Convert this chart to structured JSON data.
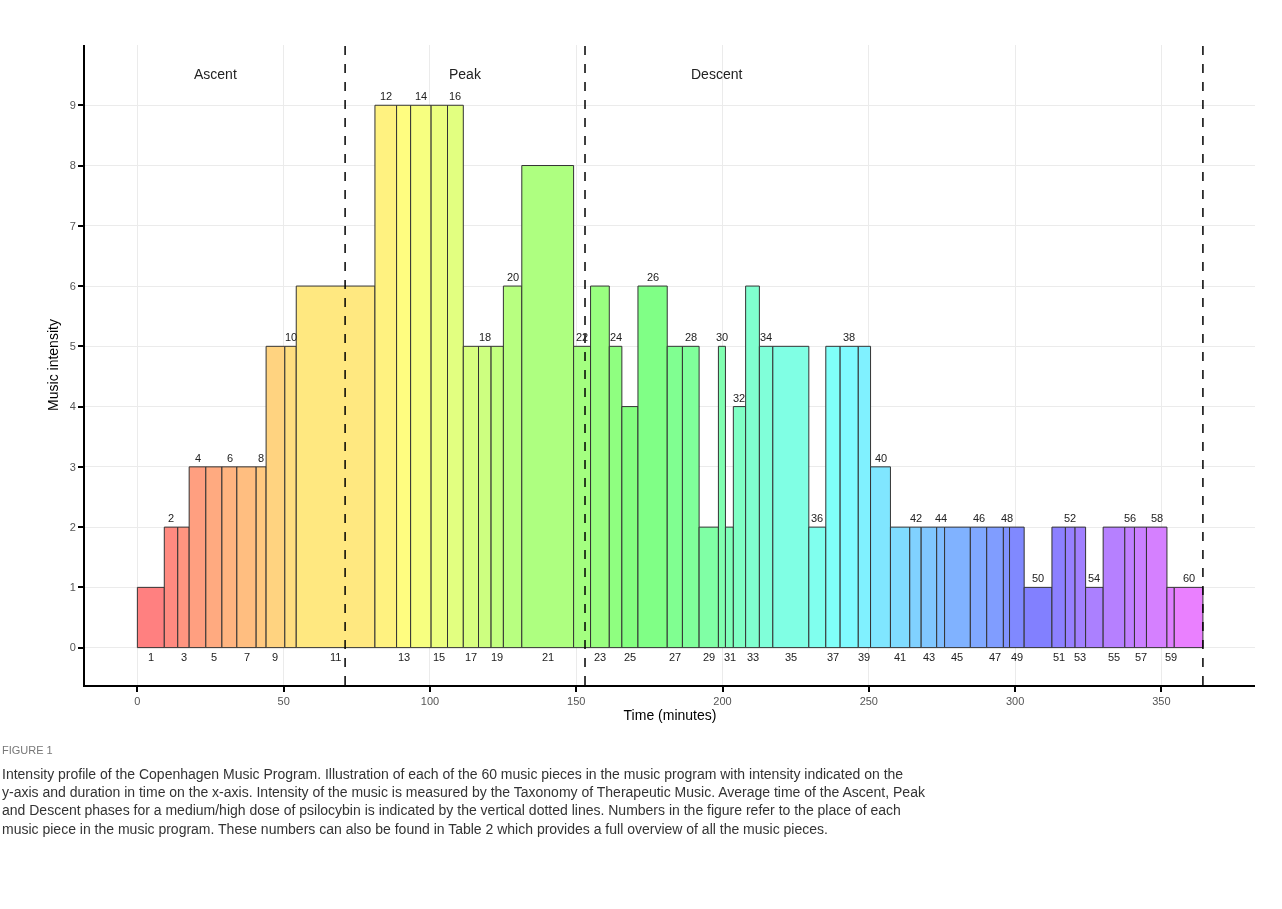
{
  "chart_data": {
    "type": "histogram",
    "xlabel": "Time (minutes)",
    "ylabel": "Music intensity",
    "bins": [
      0,
      9.2,
      13.8,
      17.7,
      23.4,
      28.9,
      34.0,
      40.6,
      44.0,
      50.4,
      54.3,
      81.2,
      88.6,
      93.4,
      100.4,
      106.0,
      111.4,
      116.6,
      120.9,
      125.1,
      131.4,
      149.1,
      154.9,
      161.3,
      165.6,
      171.1,
      181.1,
      186.3,
      192.0,
      198.6,
      201.0,
      203.7,
      207.9,
      212.6,
      217.2,
      229.5,
      235.3,
      240.2,
      246.4,
      250.6,
      257.4,
      264.0,
      267.9,
      273.2,
      275.9,
      284.7,
      290.3,
      296.0,
      298.1,
      303.1,
      312.6,
      317.2,
      320.5,
      324.1,
      330.1,
      337.5,
      340.8,
      344.9,
      351.9,
      354.4,
      364.2
    ],
    "values": [
      1,
      2,
      2,
      3,
      3,
      3,
      3,
      3,
      5,
      5,
      6,
      9,
      9,
      9,
      9,
      9,
      5,
      5,
      5,
      6,
      8,
      5,
      6,
      5,
      4,
      6,
      5,
      5,
      2,
      5,
      2,
      4,
      6,
      5,
      5,
      2,
      5,
      5,
      5,
      3,
      2,
      2,
      2,
      2,
      2,
      2,
      2,
      2,
      2,
      1,
      2,
      2,
      2,
      1,
      2,
      2,
      2,
      2,
      1,
      1
    ],
    "colors": [
      "#ff8080",
      "#ff8a80",
      "#ff9580",
      "#ff9f80",
      "#ffaa80",
      "#ffb480",
      "#ffbe80",
      "#ffc980",
      "#ffd380",
      "#ffde80",
      "#ffe880",
      "#fff280",
      "#fffd80",
      "#f7ff80",
      "#ecff80",
      "#e2ff80",
      "#d8ff80",
      "#cdff80",
      "#c3ff80",
      "#b8ff80",
      "#aeff80",
      "#a4ff80",
      "#99ff80",
      "#8fff80",
      "#84ff80",
      "#80ff86",
      "#80ff91",
      "#80ff9b",
      "#80ffa5",
      "#80ffb0",
      "#80ffba",
      "#80ffc5",
      "#80ffcf",
      "#80ffd9",
      "#80ffe4",
      "#80ffee",
      "#80fff9",
      "#80fbff",
      "#80f1ff",
      "#80e6ff",
      "#80dcff",
      "#80d1ff",
      "#80c7ff",
      "#80bcff",
      "#80b2ff",
      "#80a8ff",
      "#809dff",
      "#8093ff",
      "#8089ff",
      "#8280ff",
      "#8c80ff",
      "#9780ff",
      "#a180ff",
      "#ab80ff",
      "#b680ff",
      "#c080ff",
      "#cb80ff",
      "#d580ff",
      "#df80ff",
      "#ea80ff"
    ],
    "xlim": [
      -17.9,
      382
    ],
    "xticks": [
      0,
      50,
      100,
      150,
      200,
      250,
      300,
      350
    ],
    "ylim": [
      -0.62,
      10.0
    ],
    "yticks": [
      0,
      1,
      2,
      3,
      4,
      5,
      6,
      7,
      8,
      9
    ],
    "grid": true,
    "ref_lines": [
      {
        "axis": "x",
        "value": 71.0,
        "color": "#000000",
        "line_style": "dashed"
      },
      {
        "axis": "x",
        "value": 153.0,
        "color": "#000000",
        "line_style": "dashed"
      },
      {
        "axis": "x",
        "value": 364.2,
        "color": "#000000",
        "line_style": "dashed"
      }
    ],
    "annotations": [
      "Ascent",
      "Peak",
      "Descent",
      {
        "text": "1",
        "x": 4.6,
        "y": 0
      },
      {
        "text": "2",
        "x": 11.5,
        "y": 2
      },
      {
        "text": "3",
        "x": 15.8,
        "y": 0
      },
      {
        "text": "4",
        "x": 20.6,
        "y": 3
      },
      {
        "text": "5",
        "x": 26.2,
        "y": 0
      },
      {
        "text": "6",
        "x": 31.5,
        "y": 3
      },
      {
        "text": "7",
        "x": 37.3,
        "y": 0
      },
      {
        "text": "8",
        "x": 42.3,
        "y": 3
      },
      {
        "text": "9",
        "x": 47.2,
        "y": 0
      },
      {
        "text": "10",
        "x": 52.4,
        "y": 5
      },
      {
        "text": "11",
        "x": 67.8,
        "y": 0
      },
      {
        "text": "12",
        "x": 84.9,
        "y": 9
      },
      {
        "text": "13",
        "x": 91.0,
        "y": 0
      },
      {
        "text": "14",
        "x": 96.9,
        "y": 9
      },
      {
        "text": "15",
        "x": 103.2,
        "y": 0
      },
      {
        "text": "16",
        "x": 108.7,
        "y": 9
      },
      {
        "text": "17",
        "x": 114.0,
        "y": 0
      },
      {
        "text": "18",
        "x": 118.8,
        "y": 5
      },
      {
        "text": "19",
        "x": 123.0,
        "y": 0
      },
      {
        "text": "20",
        "x": 128.3,
        "y": 6
      },
      {
        "text": "21",
        "x": 140.3,
        "y": 0
      },
      {
        "text": "22",
        "x": 152.0,
        "y": 5
      },
      {
        "text": "23",
        "x": 158.1,
        "y": 0
      },
      {
        "text": "24",
        "x": 163.5,
        "y": 5
      },
      {
        "text": "25",
        "x": 168.4,
        "y": 0
      },
      {
        "text": "26",
        "x": 176.1,
        "y": 6
      },
      {
        "text": "27",
        "x": 183.7,
        "y": 0
      },
      {
        "text": "28",
        "x": 189.2,
        "y": 5
      },
      {
        "text": "29",
        "x": 195.3,
        "y": 0
      },
      {
        "text": "30",
        "x": 199.8,
        "y": 5
      },
      {
        "text": "31",
        "x": 202.4,
        "y": 0
      },
      {
        "text": "32",
        "x": 205.8,
        "y": 4
      },
      {
        "text": "33",
        "x": 210.3,
        "y": 0
      },
      {
        "text": "34",
        "x": 214.9,
        "y": 5
      },
      {
        "text": "35",
        "x": 223.4,
        "y": 0
      },
      {
        "text": "36",
        "x": 232.4,
        "y": 2
      },
      {
        "text": "37",
        "x": 237.8,
        "y": 0
      },
      {
        "text": "38",
        "x": 243.3,
        "y": 5
      },
      {
        "text": "39",
        "x": 248.5,
        "y": 0
      },
      {
        "text": "40",
        "x": 254.0,
        "y": 3
      },
      {
        "text": "41",
        "x": 260.7,
        "y": 0
      },
      {
        "text": "42",
        "x": 266.0,
        "y": 2
      },
      {
        "text": "43",
        "x": 270.6,
        "y": 0
      },
      {
        "text": "44",
        "x": 274.6,
        "y": 2
      },
      {
        "text": "45",
        "x": 280.3,
        "y": 0
      },
      {
        "text": "46",
        "x": 287.5,
        "y": 2
      },
      {
        "text": "47",
        "x": 293.2,
        "y": 0
      },
      {
        "text": "48",
        "x": 297.1,
        "y": 2
      },
      {
        "text": "49",
        "x": 300.6,
        "y": 0
      },
      {
        "text": "50",
        "x": 307.9,
        "y": 1
      },
      {
        "text": "51",
        "x": 314.9,
        "y": 0
      },
      {
        "text": "52",
        "x": 318.9,
        "y": 2
      },
      {
        "text": "53",
        "x": 322.3,
        "y": 0
      },
      {
        "text": "54",
        "x": 327.1,
        "y": 1
      },
      {
        "text": "55",
        "x": 333.8,
        "y": 0
      },
      {
        "text": "56",
        "x": 339.2,
        "y": 2
      },
      {
        "text": "57",
        "x": 342.9,
        "y": 0
      },
      {
        "text": "58",
        "x": 348.4,
        "y": 2
      },
      {
        "text": "59",
        "x": 353.2,
        "y": 0
      },
      {
        "text": "60",
        "x": 359.3,
        "y": 1
      },
      "FIGURE 1",
      "Intensity profile of the Copenhagen Music Program. Illustration of each of the 60 music pieces in the music program with intensity indicated on the y-axis and duration in time on the x-axis. Intensity of the music is measured by the Taxonomy of Therapeutic Music. Average time of the Ascent, Peak and Descent phases for a medium/high dose of psilocybin is indicated by the vertical dotted lines. Numbers in the figure refer to the place of each music piece in the music program. These numbers can also be found in Table 2 which provides a full overview of all the music pieces."
    ]
  }
}
